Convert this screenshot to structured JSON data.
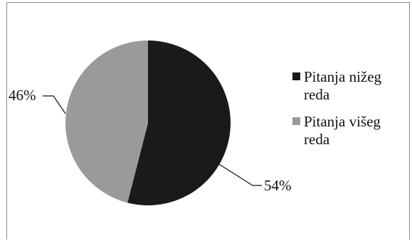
{
  "chart_data": {
    "type": "pie",
    "slices": [
      {
        "label": "Pitanja nižeg reda",
        "value": 54,
        "display": "54%",
        "color": "#1a1a1a"
      },
      {
        "label": "Pitanja višeg reda",
        "value": 46,
        "display": "46%",
        "color": "#9a9a9a"
      }
    ],
    "legend_placement": "right",
    "legend": [
      {
        "lines": [
          "Pitanja nižeg",
          "reda"
        ],
        "color": "#1a1a1a"
      },
      {
        "lines": [
          "Pitanja višeg",
          "reda"
        ],
        "color": "#9a9a9a"
      }
    ]
  }
}
